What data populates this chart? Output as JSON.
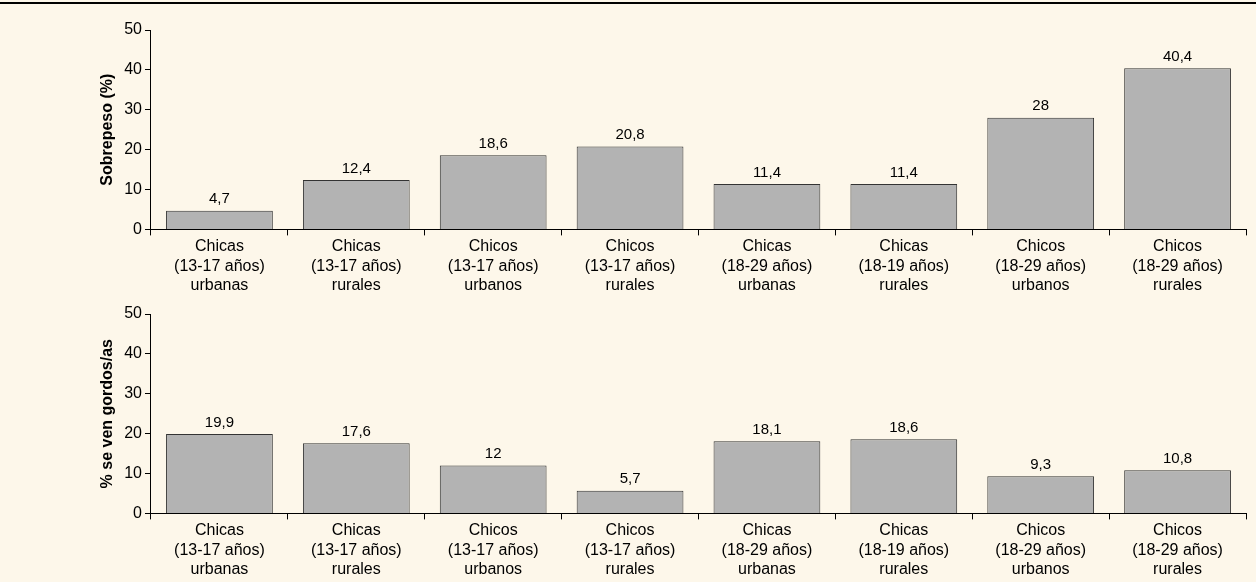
{
  "chart_data": [
    {
      "type": "bar",
      "ylabel": "Sobrepeso (%)",
      "categories": [
        "Chicas\n(13-17 años)\nurbanas",
        "Chicas\n(13-17 años)\nrurales",
        "Chicos\n(13-17 años)\nurbanos",
        "Chicos\n(13-17 años)\nrurales",
        "Chicas\n(18-29 años)\nurbanas",
        "Chicas\n(18-19 años)\nrurales",
        "Chicos\n(18-29 años)\nurbanos",
        "Chicos\n(18-29 años)\nrurales"
      ],
      "values": [
        4.7,
        12.4,
        18.6,
        20.8,
        11.4,
        11.4,
        28,
        40.4
      ],
      "value_labels": [
        "4,7",
        "12,4",
        "18,6",
        "20,8",
        "11,4",
        "11,4",
        "28",
        "40,4"
      ],
      "color": "#b3b3b3",
      "ylim": [
        0,
        50
      ],
      "yticks": [
        0,
        10,
        20,
        30,
        40,
        50
      ],
      "grid": false,
      "legend": false
    },
    {
      "type": "bar",
      "ylabel": "% se ven gordos/as",
      "categories": [
        "Chicas\n(13-17 años)\nurbanas",
        "Chicas\n(13-17 años)\nrurales",
        "Chicos\n(13-17 años)\nurbanos",
        "Chicos\n(13-17 años)\nrurales",
        "Chicas\n(18-29 años)\nurbanas",
        "Chicas\n(18-19 años)\nrurales",
        "Chicos\n(18-29 años)\nurbanos",
        "Chicos\n(18-29 años)\nrurales"
      ],
      "values": [
        19.9,
        17.6,
        12,
        5.7,
        18.1,
        18.6,
        9.3,
        10.8
      ],
      "value_labels": [
        "19,9",
        "17,6",
        "12",
        "5,7",
        "18,1",
        "18,6",
        "9,3",
        "10,8"
      ],
      "color": "#b3b3b3",
      "ylim": [
        0,
        50
      ],
      "yticks": [
        0,
        10,
        20,
        30,
        40,
        50
      ],
      "grid": false,
      "legend": false
    }
  ]
}
